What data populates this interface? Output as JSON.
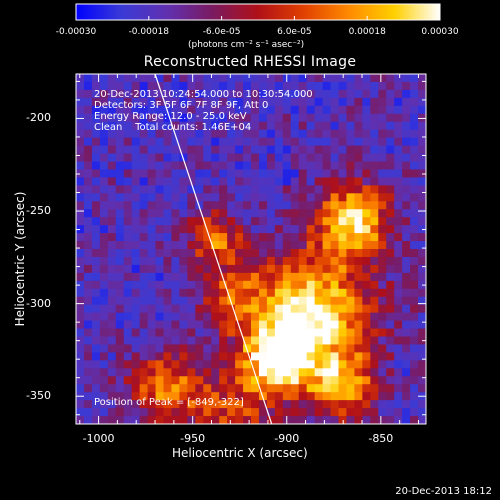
{
  "chart_data": {
    "type": "heatmap",
    "title": "Reconstructed RHESSI Image",
    "xlabel": "Heliocentric X (arcsec)",
    "ylabel": "Heliocentric Y (arcsec)",
    "xlim": [
      -1012,
      -826
    ],
    "ylim": [
      -365,
      -176
    ],
    "xticks": [
      "-1000",
      "-950",
      "-900",
      "-850"
    ],
    "yticks": [
      "-200",
      "-250",
      "-300",
      "-350"
    ],
    "xtick_values": [
      -1000,
      -950,
      -900,
      -850
    ],
    "ytick_values": [
      -200,
      -250,
      -300,
      -350
    ],
    "colorbar": {
      "ticks": [
        "-0.00030",
        "-0.00018",
        "-6.0e-05",
        "6.0e-05",
        "0.00018",
        "0.00030"
      ],
      "range": [
        -0.0003,
        0.0003
      ],
      "units": "(photons cm⁻² s⁻¹ asec⁻²)",
      "colormap": [
        "#0000ff",
        "#3a3ad6",
        "#6030b0",
        "#7a1a60",
        "#b01018",
        "#e04000",
        "#ff8a00",
        "#ffd000",
        "#ffffff"
      ]
    },
    "annotations": {
      "time_range": "20-Dec-2013 10:24:54.000 to 10:30:54.000",
      "detectors": "Detectors: 3F 5F 6F 7F 8F 9F, Att 0",
      "energy": "Energy Range: 12.0 - 25.0 keV",
      "clean": "Clean    Total counts: 1.46E+04",
      "peak": "Position of Peak = [-849,-322]"
    },
    "peak_position": [
      -849,
      -322
    ],
    "limb_line": [
      [
        -970,
        -176
      ],
      [
        -908,
        -365
      ]
    ],
    "emission_sources": [
      {
        "x": -865,
        "y": -255,
        "sigma": 14,
        "amp": 0.9
      },
      {
        "x": -887,
        "y": -305,
        "sigma": 22,
        "amp": 1.0
      },
      {
        "x": -905,
        "y": -330,
        "sigma": 14,
        "amp": 0.85
      },
      {
        "x": -938,
        "y": -265,
        "sigma": 10,
        "amp": 0.6
      },
      {
        "x": -965,
        "y": -345,
        "sigma": 14,
        "amp": 0.6
      },
      {
        "x": -930,
        "y": -295,
        "sigma": 12,
        "amp": 0.45
      },
      {
        "x": -930,
        "y": -360,
        "sigma": 16,
        "amp": 0.45
      },
      {
        "x": -870,
        "y": -345,
        "sigma": 12,
        "amp": 0.7
      }
    ]
  },
  "footer": {
    "timestamp": "20-Dec-2013 18:12"
  }
}
